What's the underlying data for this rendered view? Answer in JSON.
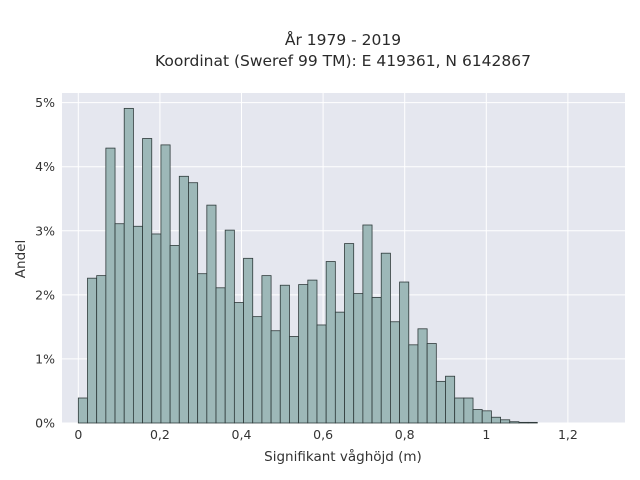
{
  "chart_data": {
    "type": "bar",
    "title_lines": [
      "År 1979 - 2019",
      "Koordinat (Sweref 99 TM): E 419361, N 6142867"
    ],
    "xlabel": "Signifikant våghöjd (m)",
    "ylabel": "Andel",
    "xlim": [
      -0.04,
      1.34
    ],
    "ylim": [
      0,
      5.15
    ],
    "x_ticks": [
      {
        "value": 0,
        "label": "0"
      },
      {
        "value": 0.2,
        "label": "0,2"
      },
      {
        "value": 0.4,
        "label": "0,4"
      },
      {
        "value": 0.6,
        "label": "0,6"
      },
      {
        "value": 0.8,
        "label": "0,8"
      },
      {
        "value": 1.0,
        "label": "1"
      },
      {
        "value": 1.2,
        "label": "1,2"
      }
    ],
    "y_ticks": [
      {
        "value": 0,
        "label": "0%"
      },
      {
        "value": 1,
        "label": "1%"
      },
      {
        "value": 2,
        "label": "2%"
      },
      {
        "value": 3,
        "label": "3%"
      },
      {
        "value": 4,
        "label": "4%"
      },
      {
        "value": 5,
        "label": "5%"
      }
    ],
    "bin_start": 0.0,
    "bin_width": 0.0225,
    "values": [
      0.39,
      2.26,
      2.3,
      4.29,
      3.11,
      4.91,
      3.07,
      4.44,
      2.95,
      4.34,
      2.77,
      3.85,
      3.75,
      2.33,
      3.4,
      2.11,
      3.01,
      1.88,
      2.57,
      1.66,
      2.3,
      1.44,
      2.15,
      1.35,
      2.16,
      2.23,
      1.53,
      2.52,
      1.73,
      2.8,
      2.02,
      3.09,
      1.96,
      2.65,
      1.58,
      2.2,
      1.22,
      1.47,
      1.24,
      0.65,
      0.73,
      0.39,
      0.39,
      0.21,
      0.19,
      0.09,
      0.05,
      0.02,
      0.01,
      0.01
    ],
    "grid": true,
    "legend": "none",
    "colors": {
      "plot_bg": "#e5e7ef",
      "grid": "#ffffff",
      "bar_fill": "#9db8b8",
      "bar_stroke": "#2e3a3a"
    }
  }
}
